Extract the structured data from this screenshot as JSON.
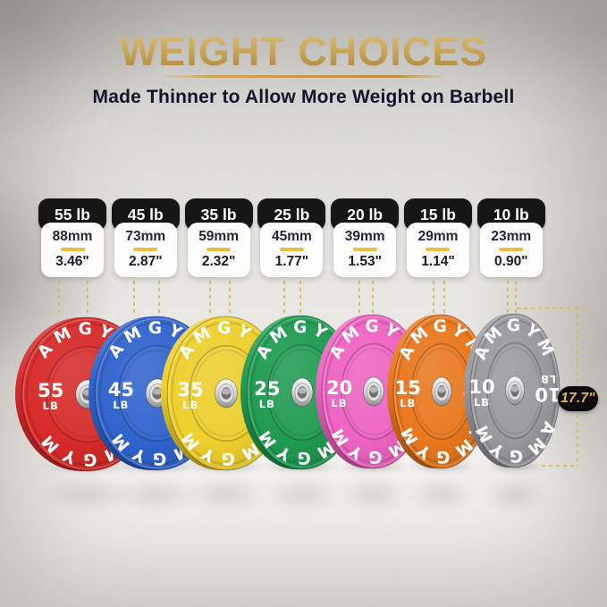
{
  "header": {
    "title": "WEIGHT CHOICES",
    "subtitle": "Made Thinner to Allow More Weight on Barbell"
  },
  "brand": "AMGYM",
  "unit": "LB",
  "diameter_label": "17.7\"",
  "accent_gold": "#ecbe3f",
  "title_gold": "#c9a557",
  "weights": [
    {
      "label": "55 lb",
      "mm": "88mm",
      "inch": "3.46\"",
      "plate_number": "55",
      "color": "#d62a28"
    },
    {
      "label": "45 lb",
      "mm": "73mm",
      "inch": "2.87\"",
      "plate_number": "45",
      "color": "#2f63cd"
    },
    {
      "label": "35 lb",
      "mm": "59mm",
      "inch": "2.32\"",
      "plate_number": "35",
      "color": "#edcf2d"
    },
    {
      "label": "25 lb",
      "mm": "45mm",
      "inch": "1.77\"",
      "plate_number": "25",
      "color": "#1f9b51"
    },
    {
      "label": "20 lb",
      "mm": "39mm",
      "inch": "1.53\"",
      "plate_number": "20",
      "color": "#ee63c2"
    },
    {
      "label": "15 lb",
      "mm": "29mm",
      "inch": "1.14\"",
      "plate_number": "15",
      "color": "#e9771d"
    },
    {
      "label": "10 lb",
      "mm": "23mm",
      "inch": "0.90\"",
      "plate_number": "10",
      "color": "#9a999d"
    }
  ]
}
